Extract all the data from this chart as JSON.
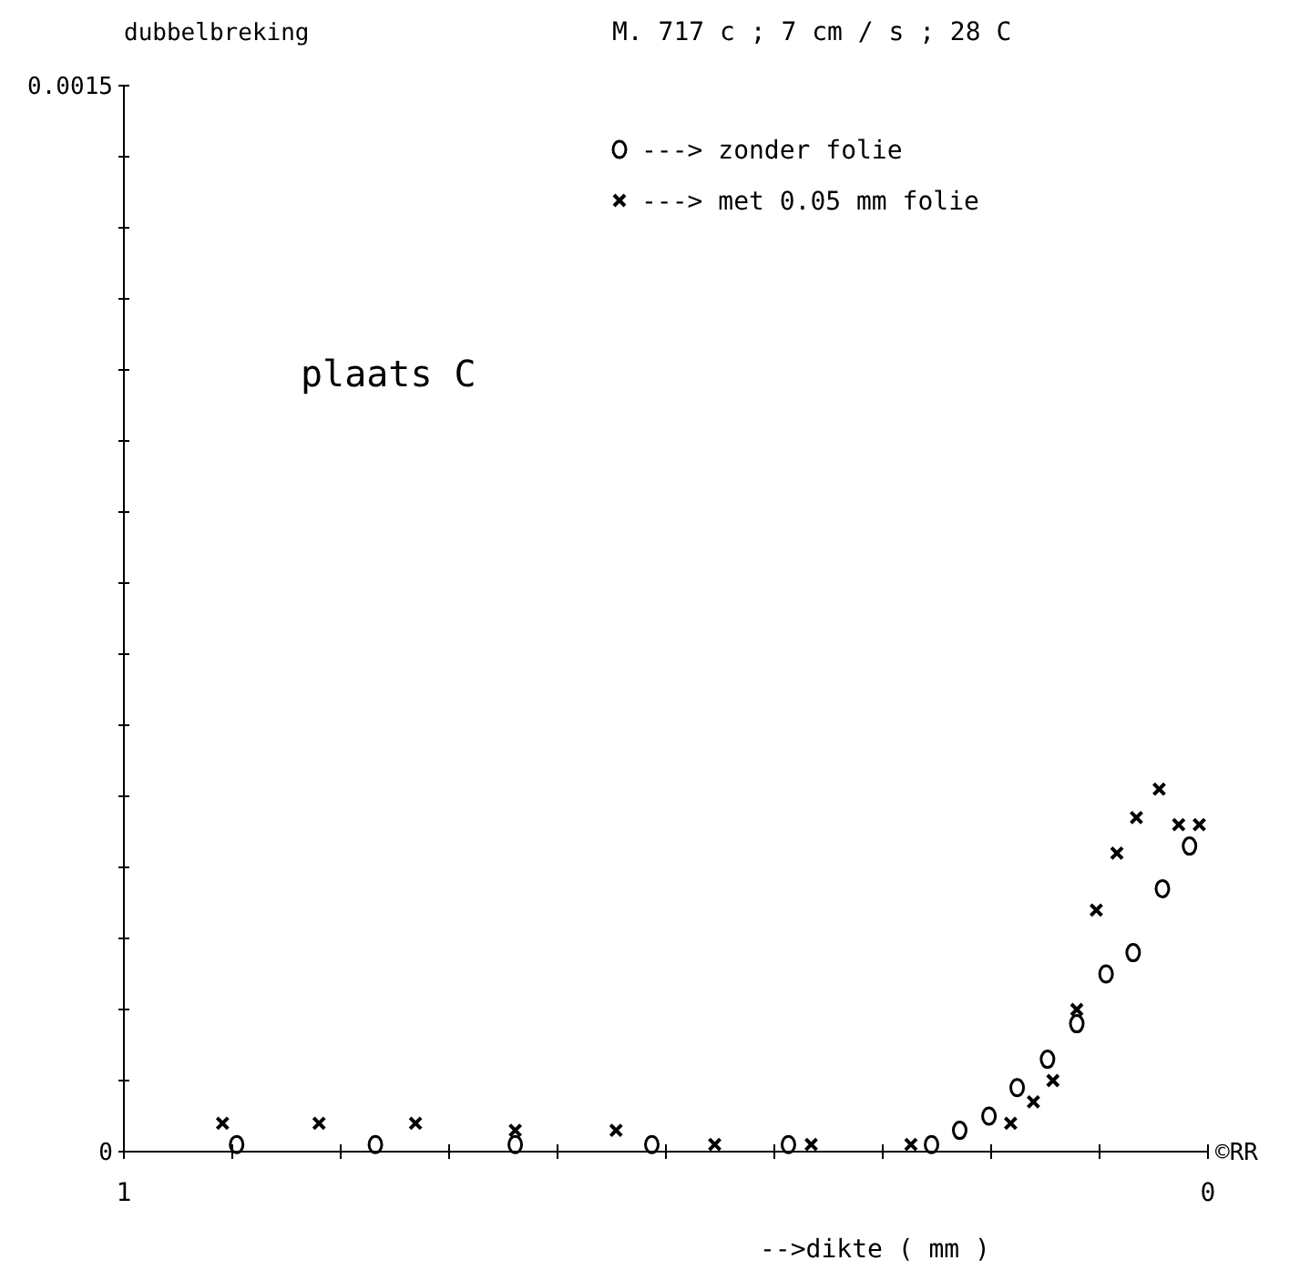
{
  "chart_data": {
    "type": "scatter",
    "title": "M. 717 c ; 7 cm / s ; 28 C",
    "ylabel": "dubbelbreking",
    "xlabel": "-->dikte ( mm )",
    "annotations": [
      "plaats C",
      "©RR"
    ],
    "xlim": [
      1,
      0
    ],
    "ylim": [
      0,
      0.0015
    ],
    "xticks": [
      {
        "value": 1,
        "label": "1"
      },
      {
        "value": 0.9,
        "label": null
      },
      {
        "value": 0.8,
        "label": null
      },
      {
        "value": 0.7,
        "label": null
      },
      {
        "value": 0.6,
        "label": null
      },
      {
        "value": 0.5,
        "label": null
      },
      {
        "value": 0.4,
        "label": null
      },
      {
        "value": 0.3,
        "label": null
      },
      {
        "value": 0.2,
        "label": null
      },
      {
        "value": 0.1,
        "label": null
      },
      {
        "value": 0,
        "label": "0"
      }
    ],
    "yticks": [
      {
        "value": 0,
        "label": "0"
      },
      {
        "value": 0.0001,
        "label": null
      },
      {
        "value": 0.0002,
        "label": null
      },
      {
        "value": 0.0003,
        "label": null
      },
      {
        "value": 0.0004,
        "label": null
      },
      {
        "value": 0.0005,
        "label": null
      },
      {
        "value": 0.0006,
        "label": null
      },
      {
        "value": 0.0007,
        "label": null
      },
      {
        "value": 0.0008,
        "label": null
      },
      {
        "value": 0.0009,
        "label": null
      },
      {
        "value": 0.001,
        "label": null
      },
      {
        "value": 0.0011,
        "label": null
      },
      {
        "value": 0.0012,
        "label": null
      },
      {
        "value": 0.0013,
        "label": null
      },
      {
        "value": 0.0014,
        "label": null
      },
      {
        "value": 0.0015,
        "label": "0.0015"
      }
    ],
    "grid": false,
    "legend": "top right",
    "series": [
      {
        "name": "---> zonder folie",
        "color": "#000000",
        "marker": "circle",
        "x": [
          0.896,
          0.768,
          0.639,
          0.513,
          0.387,
          0.255,
          0.229,
          0.202,
          0.176,
          0.148,
          0.121,
          0.094,
          0.069,
          0.042,
          0.017
        ],
        "values": [
          1e-05,
          1e-05,
          1e-05,
          1e-05,
          1e-05,
          1e-05,
          3e-05,
          5e-05,
          9e-05,
          0.00013,
          0.00018,
          0.00025,
          0.00028,
          0.00037,
          0.00043
        ]
      },
      {
        "name": "---> met 0.05 mm folie",
        "color": "#000000",
        "marker": "cross",
        "x": [
          0.909,
          0.82,
          0.731,
          0.639,
          0.546,
          0.455,
          0.366,
          0.274,
          0.182,
          0.161,
          0.143,
          0.121,
          0.103,
          0.084,
          0.066,
          0.045,
          0.027,
          0.008
        ],
        "values": [
          4e-05,
          4e-05,
          4e-05,
          3e-05,
          3e-05,
          1e-05,
          1e-05,
          1e-05,
          4e-05,
          7e-05,
          0.0001,
          0.0002,
          0.00034,
          0.00042,
          0.00047,
          0.00051,
          0.00046,
          0.00046
        ]
      }
    ]
  }
}
